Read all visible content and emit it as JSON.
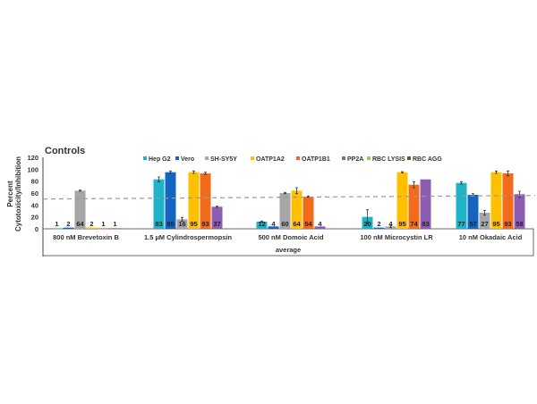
{
  "chart_data": {
    "type": "bar",
    "title": "Controls",
    "ylabel": "Percent Cytotoxicity/Inhibition",
    "ylabel_lines": [
      "Percent",
      "Cytotoxicity/Inhibition"
    ],
    "xlabel": "average",
    "ylim": [
      0,
      120
    ],
    "yticks": [
      0,
      20,
      40,
      60,
      80,
      100,
      120
    ],
    "threshold": 50,
    "legend_position": "top",
    "categories": [
      "800 nM Brevetoxin B",
      "1.5 µM Cylindrospermopsin",
      "500 nM Domoic Acid",
      "100 nM Microcystin LR",
      "10 nM Okadaic Acid"
    ],
    "series": [
      {
        "name": "Hep G2",
        "color": "#1fb3c8",
        "values": [
          1,
          83,
          12,
          20,
          77
        ],
        "errors": [
          0,
          4,
          1,
          12,
          2
        ]
      },
      {
        "name": "Vero",
        "color": "#1565c0",
        "values": [
          2,
          95,
          4,
          2,
          57
        ],
        "errors": [
          0,
          2,
          0,
          0,
          2
        ]
      },
      {
        "name": "SH-SY5Y",
        "color": "#a6a6a6",
        "values": [
          64,
          16,
          60,
          4,
          27
        ],
        "errors": [
          1,
          3,
          1,
          2,
          4
        ]
      },
      {
        "name": "OATP1A2",
        "color": "#ffc000",
        "values": [
          2,
          95,
          64,
          95,
          95
        ],
        "errors": [
          0,
          2,
          5,
          1,
          2
        ]
      },
      {
        "name": "OATP1B1",
        "color": "#f26b1d",
        "values": [
          1,
          93,
          54,
          74,
          93
        ],
        "errors": [
          0,
          2,
          1,
          5,
          4
        ]
      },
      {
        "name": "PP2A",
        "color": "#8e5cb0",
        "values": [
          1,
          37,
          4,
          83,
          58
        ],
        "errors": [
          0,
          1,
          0,
          0,
          5
        ]
      },
      {
        "name": "RBC LYSIS",
        "color": "#92d050",
        "values": [
          null,
          null,
          null,
          null,
          null
        ]
      },
      {
        "name": "RBC AGG",
        "color": "#4f6228",
        "values": [
          null,
          null,
          null,
          null,
          null
        ]
      }
    ]
  }
}
